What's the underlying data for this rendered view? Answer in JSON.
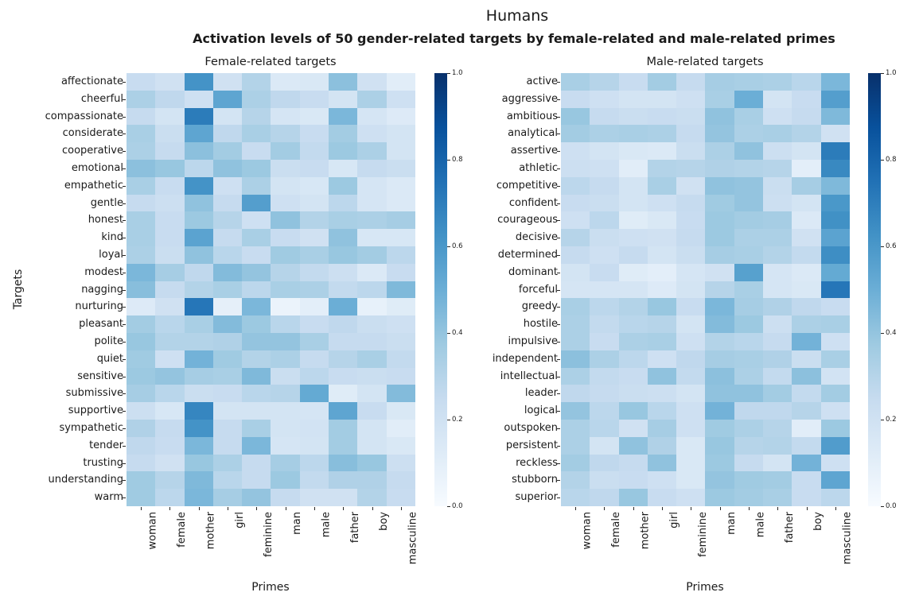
{
  "figure": {
    "suptitle": "Humans",
    "subtitle": "Activation levels of 50 gender-related targets by female-related and male-related primes"
  },
  "chart_data": {
    "type": "heatmap",
    "colormap": "Blues",
    "vmin": 0.0,
    "vmax": 1.0,
    "xlabel": "Primes",
    "ylabel": "Targets",
    "colorbar_ticks": [
      "1.0",
      "0.8",
      "0.6",
      "0.4",
      "0.2",
      "0.0"
    ],
    "x_categories": [
      "woman",
      "female",
      "mother",
      "girl",
      "feminine",
      "man",
      "male",
      "father",
      "boy",
      "masculine"
    ],
    "panels": [
      {
        "title": "Female-related targets",
        "rows": [
          "affectionate",
          "cheerful",
          "compassionate",
          "considerate",
          "cooperative",
          "emotional",
          "empathetic",
          "gentle",
          "honest",
          "kind",
          "loyal",
          "modest",
          "nagging",
          "nurturing",
          "pleasant",
          "polite",
          "quiet",
          "sensitive",
          "submissive",
          "supportive",
          "sympathetic",
          "tender",
          "trusting",
          "understanding",
          "warm"
        ],
        "values": [
          [
            0.24,
            0.2,
            0.62,
            0.2,
            0.31,
            0.14,
            0.15,
            0.42,
            0.2,
            0.11
          ],
          [
            0.33,
            0.27,
            0.21,
            0.54,
            0.33,
            0.27,
            0.24,
            0.18,
            0.33,
            0.21
          ],
          [
            0.25,
            0.18,
            0.71,
            0.18,
            0.3,
            0.17,
            0.15,
            0.46,
            0.17,
            0.13
          ],
          [
            0.34,
            0.23,
            0.54,
            0.27,
            0.34,
            0.3,
            0.24,
            0.36,
            0.21,
            0.18
          ],
          [
            0.33,
            0.25,
            0.42,
            0.36,
            0.24,
            0.36,
            0.26,
            0.38,
            0.33,
            0.18
          ],
          [
            0.42,
            0.39,
            0.28,
            0.41,
            0.38,
            0.23,
            0.24,
            0.16,
            0.25,
            0.23
          ],
          [
            0.34,
            0.24,
            0.62,
            0.21,
            0.33,
            0.18,
            0.16,
            0.38,
            0.17,
            0.14
          ],
          [
            0.25,
            0.22,
            0.41,
            0.25,
            0.57,
            0.21,
            0.18,
            0.28,
            0.17,
            0.14
          ],
          [
            0.34,
            0.24,
            0.38,
            0.3,
            0.21,
            0.41,
            0.31,
            0.34,
            0.33,
            0.35
          ],
          [
            0.34,
            0.24,
            0.55,
            0.25,
            0.34,
            0.24,
            0.2,
            0.41,
            0.16,
            0.16
          ],
          [
            0.33,
            0.23,
            0.41,
            0.29,
            0.24,
            0.37,
            0.34,
            0.39,
            0.36,
            0.28
          ],
          [
            0.46,
            0.35,
            0.27,
            0.44,
            0.4,
            0.3,
            0.26,
            0.22,
            0.14,
            0.24
          ],
          [
            0.43,
            0.25,
            0.31,
            0.34,
            0.28,
            0.34,
            0.33,
            0.26,
            0.28,
            0.45
          ],
          [
            0.13,
            0.2,
            0.73,
            0.09,
            0.46,
            0.06,
            0.1,
            0.5,
            0.08,
            0.12
          ],
          [
            0.36,
            0.29,
            0.34,
            0.44,
            0.38,
            0.29,
            0.24,
            0.27,
            0.23,
            0.21
          ],
          [
            0.39,
            0.31,
            0.31,
            0.32,
            0.4,
            0.4,
            0.34,
            0.25,
            0.25,
            0.23
          ],
          [
            0.37,
            0.21,
            0.48,
            0.37,
            0.31,
            0.33,
            0.25,
            0.3,
            0.34,
            0.26
          ],
          [
            0.38,
            0.4,
            0.35,
            0.34,
            0.45,
            0.23,
            0.28,
            0.24,
            0.23,
            0.24
          ],
          [
            0.35,
            0.29,
            0.23,
            0.24,
            0.29,
            0.3,
            0.52,
            0.12,
            0.18,
            0.44
          ],
          [
            0.22,
            0.16,
            0.67,
            0.18,
            0.18,
            0.18,
            0.17,
            0.54,
            0.24,
            0.15
          ],
          [
            0.32,
            0.25,
            0.62,
            0.25,
            0.34,
            0.18,
            0.19,
            0.36,
            0.18,
            0.11
          ],
          [
            0.27,
            0.24,
            0.46,
            0.25,
            0.46,
            0.17,
            0.18,
            0.36,
            0.18,
            0.15
          ],
          [
            0.25,
            0.2,
            0.39,
            0.33,
            0.25,
            0.35,
            0.28,
            0.43,
            0.39,
            0.22
          ],
          [
            0.37,
            0.3,
            0.45,
            0.29,
            0.25,
            0.38,
            0.26,
            0.32,
            0.32,
            0.25
          ],
          [
            0.37,
            0.28,
            0.46,
            0.35,
            0.4,
            0.25,
            0.2,
            0.2,
            0.31,
            0.24
          ]
        ]
      },
      {
        "title": "Male-related targets",
        "rows": [
          "active",
          "aggressive",
          "ambitious",
          "analytical",
          "assertive",
          "athletic",
          "competitive",
          "confident",
          "courageous",
          "decisive",
          "determined",
          "dominant",
          "forceful",
          "greedy",
          "hostile",
          "impulsive",
          "independent",
          "intellectual",
          "leader",
          "logical",
          "outspoken",
          "persistent",
          "reckless",
          "stubborn",
          "superior"
        ],
        "values": [
          [
            0.34,
            0.3,
            0.24,
            0.36,
            0.25,
            0.35,
            0.34,
            0.33,
            0.29,
            0.46
          ],
          [
            0.24,
            0.21,
            0.18,
            0.18,
            0.21,
            0.34,
            0.5,
            0.18,
            0.24,
            0.57
          ],
          [
            0.39,
            0.25,
            0.23,
            0.24,
            0.23,
            0.41,
            0.34,
            0.21,
            0.25,
            0.45
          ],
          [
            0.36,
            0.33,
            0.34,
            0.33,
            0.25,
            0.4,
            0.33,
            0.34,
            0.31,
            0.2
          ],
          [
            0.21,
            0.18,
            0.15,
            0.14,
            0.23,
            0.33,
            0.41,
            0.22,
            0.18,
            0.71
          ],
          [
            0.22,
            0.21,
            0.11,
            0.31,
            0.3,
            0.32,
            0.31,
            0.3,
            0.1,
            0.66
          ],
          [
            0.28,
            0.25,
            0.18,
            0.34,
            0.2,
            0.41,
            0.4,
            0.23,
            0.35,
            0.45
          ],
          [
            0.24,
            0.23,
            0.18,
            0.21,
            0.25,
            0.37,
            0.4,
            0.22,
            0.18,
            0.6
          ],
          [
            0.21,
            0.28,
            0.12,
            0.15,
            0.24,
            0.38,
            0.36,
            0.35,
            0.14,
            0.63
          ],
          [
            0.3,
            0.23,
            0.21,
            0.2,
            0.25,
            0.38,
            0.33,
            0.33,
            0.2,
            0.55
          ],
          [
            0.25,
            0.21,
            0.25,
            0.18,
            0.23,
            0.35,
            0.34,
            0.31,
            0.26,
            0.64
          ],
          [
            0.18,
            0.24,
            0.12,
            0.1,
            0.17,
            0.2,
            0.56,
            0.17,
            0.14,
            0.52
          ],
          [
            0.17,
            0.17,
            0.17,
            0.13,
            0.18,
            0.3,
            0.34,
            0.17,
            0.15,
            0.73
          ],
          [
            0.34,
            0.28,
            0.31,
            0.39,
            0.24,
            0.46,
            0.35,
            0.32,
            0.27,
            0.24
          ],
          [
            0.33,
            0.26,
            0.29,
            0.3,
            0.18,
            0.44,
            0.38,
            0.22,
            0.33,
            0.34
          ],
          [
            0.33,
            0.24,
            0.33,
            0.34,
            0.21,
            0.31,
            0.29,
            0.25,
            0.48,
            0.21
          ],
          [
            0.42,
            0.33,
            0.28,
            0.21,
            0.27,
            0.35,
            0.34,
            0.32,
            0.23,
            0.34
          ],
          [
            0.33,
            0.26,
            0.24,
            0.41,
            0.26,
            0.42,
            0.33,
            0.26,
            0.42,
            0.19
          ],
          [
            0.27,
            0.25,
            0.23,
            0.22,
            0.18,
            0.41,
            0.41,
            0.36,
            0.26,
            0.36
          ],
          [
            0.4,
            0.28,
            0.39,
            0.29,
            0.21,
            0.48,
            0.27,
            0.27,
            0.3,
            0.21
          ],
          [
            0.33,
            0.29,
            0.2,
            0.35,
            0.21,
            0.37,
            0.33,
            0.3,
            0.11,
            0.38
          ],
          [
            0.33,
            0.18,
            0.41,
            0.32,
            0.15,
            0.39,
            0.3,
            0.31,
            0.26,
            0.58
          ],
          [
            0.36,
            0.27,
            0.25,
            0.41,
            0.15,
            0.38,
            0.25,
            0.18,
            0.48,
            0.21
          ],
          [
            0.31,
            0.23,
            0.24,
            0.21,
            0.15,
            0.4,
            0.37,
            0.36,
            0.24,
            0.54
          ],
          [
            0.29,
            0.27,
            0.39,
            0.24,
            0.21,
            0.38,
            0.36,
            0.34,
            0.24,
            0.28
          ]
        ]
      }
    ]
  }
}
